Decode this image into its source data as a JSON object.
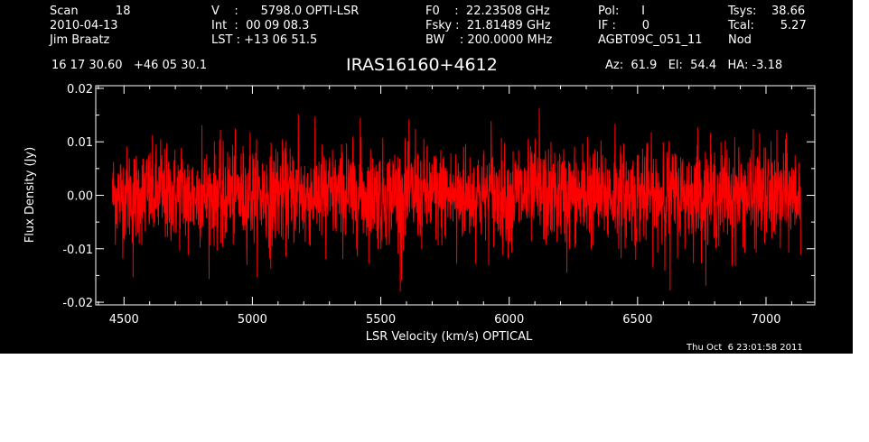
{
  "header": {
    "col1": [
      "Scan          18",
      "2010-04-13",
      "Jim Braatz"
    ],
    "col2": [
      "V    :      5798.0 OPTI-LSR",
      "Int  :  00 09 08.3",
      "LST : +13 06 51.5"
    ],
    "col3": [
      "F0    :  22.23508 GHz",
      "Fsky :  21.81489 GHz",
      "BW    : 200.0000 MHz"
    ],
    "col4": [
      "Pol:      I",
      "IF :       0",
      "AGBT09C_051_11"
    ],
    "col5": [
      "Tsys:    38.66",
      "Tcal:       5.27",
      "Nod"
    ],
    "coords": "16 17 30.60   +46 05 30.1",
    "title": "IRAS16160+4612",
    "azel": "Az:  61.9   El:  54.4   HA: -3.18",
    "timestamp": "Thu Oct  6 23:01:58 2011"
  },
  "colors": {
    "background": "#000000",
    "axes": "#ffffff",
    "trace": "#ff0000"
  },
  "chart_data": {
    "type": "line",
    "title": "IRAS16160+4612",
    "xlabel": "LSR Velocity (km/s) OPTICAL",
    "ylabel": "Flux Density (Jy)",
    "xlim": [
      4390,
      7190
    ],
    "ylim": [
      -0.0205,
      0.0205
    ],
    "xticks": [
      4500,
      5000,
      5500,
      6000,
      6500,
      7000
    ],
    "xtick_labels": [
      "4500",
      "5000",
      "5500",
      "6000",
      "6500",
      "7000"
    ],
    "yticks": [
      -0.02,
      -0.01,
      0.0,
      0.01,
      0.02
    ],
    "ytick_labels": [
      "-0.02",
      "-0.01",
      "0.00",
      "0.01",
      "0.02"
    ],
    "grid": false,
    "series": [
      {
        "x_start": 4455,
        "x_end": 7135,
        "noise_rms_jy": 0.0045,
        "y_min": -0.018,
        "y_max": 0.0165,
        "values": [
          0.0031,
          -0.0022,
          0.0048,
          -0.0153,
          0.0012,
          0.0067,
          -0.0041,
          0.0105,
          -0.0078,
          0.0023,
          0.0089,
          -0.0112,
          0.0015,
          0.0131,
          -0.0055,
          0.0038,
          -0.0096,
          0.0072,
          0.0004,
          -0.0065,
          0.0118,
          -0.0031,
          0.0046,
          -0.0138,
          0.0081,
          0.0019,
          -0.0049,
          0.0152,
          -0.0087,
          0.0027,
          0.0063,
          -0.0119,
          0.0035,
          -0.0014,
          0.0097,
          -0.0072,
          0.0145,
          -0.0026,
          0.0052,
          -0.0101,
          0.0011,
          0.0076,
          -0.0159,
          0.0043,
          0.0124,
          -0.0058,
          0.0009,
          -0.0083,
          0.0068,
          0.0031,
          -0.0128,
          0.0091,
          -0.0039,
          0.0056,
          -0.0017,
          0.0139,
          -0.0068,
          0.0022,
          -0.0107,
          0.0084,
          0.0047,
          -0.0033,
          0.0163,
          -0.0092,
          0.0014,
          0.0071,
          -0.0145,
          0.0029,
          -0.0052,
          0.0109,
          -0.0024,
          0.0058,
          -0.0079,
          0.0134,
          -0.0011,
          0.0039,
          -0.0121,
          0.0087,
          0.0006,
          -0.0061,
          0.0099,
          -0.0178,
          0.0044,
          0.0017,
          -0.0036,
          0.0127,
          -0.0084,
          0.0053,
          -0.0008,
          0.0102,
          -0.0132,
          0.0065,
          0.0026,
          -0.0047,
          0.0116,
          -0.0069,
          0.0034,
          -0.0099,
          0.0079,
          0.0012
        ]
      }
    ]
  }
}
